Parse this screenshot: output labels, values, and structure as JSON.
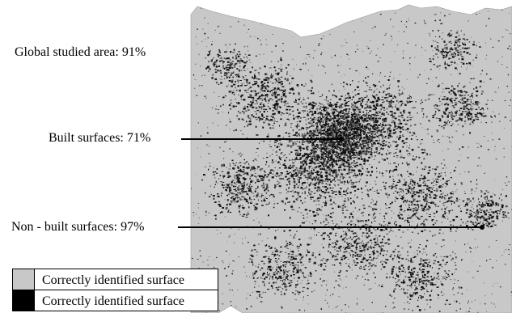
{
  "labels": {
    "global": "Global studied area: 91%",
    "built": "Built surfaces: 71%",
    "non_built": "Non - built surfaces: 97%"
  },
  "legend": [
    {
      "label": "Correctly identified surface",
      "color": "#c8c8c8"
    },
    {
      "label": "Correctly identified surface",
      "color": "#000000"
    }
  ],
  "colors": {
    "map_fill": "#c8c8c8",
    "urban_mark": "#000000",
    "background": "#ffffff"
  }
}
